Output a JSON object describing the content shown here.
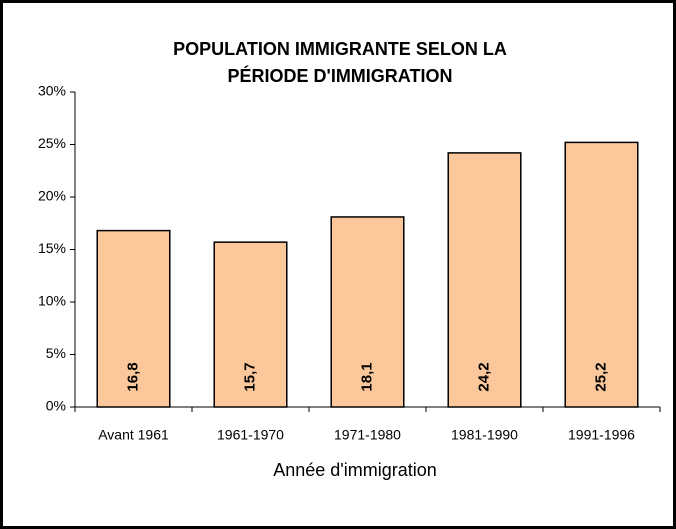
{
  "chart_data": {
    "type": "bar",
    "title": "POPULATION IMMIGRANTE SELON LA PÉRIODE D'IMMIGRATION",
    "x_label": "Année d'immigration",
    "categories": [
      "Avant 1961",
      "1961-1970",
      "1971-1980",
      "1981-1990",
      "1991-1996"
    ],
    "values": [
      16.8,
      15.7,
      18.1,
      24.2,
      25.2
    ],
    "value_labels": [
      "16,8",
      "15,7",
      "18,1",
      "24,2",
      "25,2"
    ],
    "color": "#fcc89b",
    "ylim": [
      0,
      30
    ],
    "yticks": [
      {
        "value": 0,
        "label": "0%"
      },
      {
        "value": 5,
        "label": "5%"
      },
      {
        "value": 10,
        "label": "10%"
      },
      {
        "value": 15,
        "label": "15%"
      },
      {
        "value": 20,
        "label": "20%"
      },
      {
        "value": 25,
        "label": "25%"
      },
      {
        "value": 30,
        "label": "30%"
      }
    ],
    "grid": false
  }
}
